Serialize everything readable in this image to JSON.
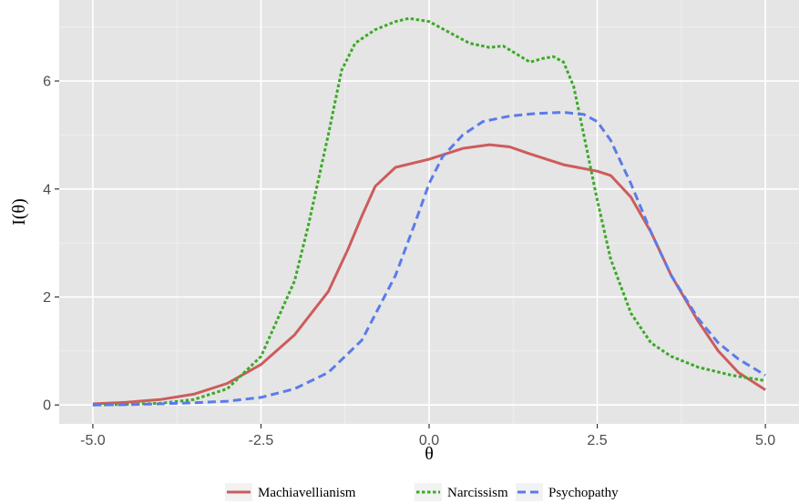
{
  "chart_data": {
    "type": "line",
    "xlabel": "θ",
    "ylabel": "I(θ)",
    "xlim": [
      -5.5,
      5.5
    ],
    "ylim": [
      -0.35,
      7.5
    ],
    "x_ticks": [
      -5,
      -2.5,
      0,
      2.5,
      5
    ],
    "x_tick_labels": [
      "-5.0",
      "-2.5",
      "0.0",
      "2.5",
      "5.0"
    ],
    "y_ticks": [
      0,
      2,
      4,
      6
    ],
    "y_tick_labels": [
      "0",
      "2",
      "4",
      "6"
    ],
    "grid": true,
    "legend_position": "bottom",
    "background": "#e5e5e5",
    "series": [
      {
        "name": "Machiavellianism",
        "color": "#cd5c5c",
        "dash": "solid",
        "points": [
          [
            -5,
            0.02
          ],
          [
            -4.5,
            0.05
          ],
          [
            -4,
            0.1
          ],
          [
            -3.5,
            0.2
          ],
          [
            -3,
            0.4
          ],
          [
            -2.5,
            0.75
          ],
          [
            -2,
            1.3
          ],
          [
            -1.5,
            2.1
          ],
          [
            -1.2,
            2.9
          ],
          [
            -1,
            3.5
          ],
          [
            -0.8,
            4.05
          ],
          [
            -0.5,
            4.4
          ],
          [
            0,
            4.55
          ],
          [
            0.5,
            4.75
          ],
          [
            0.9,
            4.82
          ],
          [
            1.2,
            4.78
          ],
          [
            1.5,
            4.65
          ],
          [
            2,
            4.45
          ],
          [
            2.5,
            4.33
          ],
          [
            2.7,
            4.25
          ],
          [
            3,
            3.85
          ],
          [
            3.3,
            3.2
          ],
          [
            3.6,
            2.4
          ],
          [
            4,
            1.55
          ],
          [
            4.3,
            1.0
          ],
          [
            4.6,
            0.6
          ],
          [
            5,
            0.28
          ]
        ]
      },
      {
        "name": "Narcissism",
        "color": "#3caa28",
        "dash": "dotted",
        "points": [
          [
            -5,
            0.0
          ],
          [
            -4.5,
            0.01
          ],
          [
            -4,
            0.03
          ],
          [
            -3.5,
            0.1
          ],
          [
            -3,
            0.3
          ],
          [
            -2.5,
            0.9
          ],
          [
            -2,
            2.3
          ],
          [
            -1.8,
            3.3
          ],
          [
            -1.5,
            5.0
          ],
          [
            -1.3,
            6.2
          ],
          [
            -1.1,
            6.7
          ],
          [
            -0.8,
            6.95
          ],
          [
            -0.5,
            7.1
          ],
          [
            -0.3,
            7.16
          ],
          [
            0,
            7.1
          ],
          [
            0.3,
            6.9
          ],
          [
            0.6,
            6.7
          ],
          [
            0.9,
            6.62
          ],
          [
            1.1,
            6.65
          ],
          [
            1.3,
            6.5
          ],
          [
            1.5,
            6.35
          ],
          [
            1.7,
            6.42
          ],
          [
            1.85,
            6.45
          ],
          [
            2.0,
            6.35
          ],
          [
            2.15,
            5.9
          ],
          [
            2.3,
            5.0
          ],
          [
            2.5,
            3.8
          ],
          [
            2.7,
            2.7
          ],
          [
            3.0,
            1.7
          ],
          [
            3.3,
            1.15
          ],
          [
            3.6,
            0.9
          ],
          [
            4,
            0.7
          ],
          [
            4.5,
            0.55
          ],
          [
            5,
            0.45
          ]
        ]
      },
      {
        "name": "Psychopathy",
        "color": "#5b7bea",
        "dash": "dashed",
        "points": [
          [
            -5,
            0.0
          ],
          [
            -4.5,
            0.005
          ],
          [
            -4,
            0.02
          ],
          [
            -3.5,
            0.04
          ],
          [
            -3,
            0.07
          ],
          [
            -2.5,
            0.14
          ],
          [
            -2,
            0.3
          ],
          [
            -1.5,
            0.6
          ],
          [
            -1,
            1.2
          ],
          [
            -0.5,
            2.4
          ],
          [
            -0.2,
            3.4
          ],
          [
            0,
            4.1
          ],
          [
            0.2,
            4.6
          ],
          [
            0.5,
            5.0
          ],
          [
            0.8,
            5.25
          ],
          [
            1.2,
            5.35
          ],
          [
            1.6,
            5.4
          ],
          [
            2.0,
            5.42
          ],
          [
            2.3,
            5.38
          ],
          [
            2.5,
            5.25
          ],
          [
            2.7,
            4.9
          ],
          [
            3.0,
            4.1
          ],
          [
            3.3,
            3.2
          ],
          [
            3.6,
            2.4
          ],
          [
            4,
            1.6
          ],
          [
            4.3,
            1.15
          ],
          [
            4.6,
            0.85
          ],
          [
            5,
            0.55
          ]
        ]
      }
    ]
  }
}
